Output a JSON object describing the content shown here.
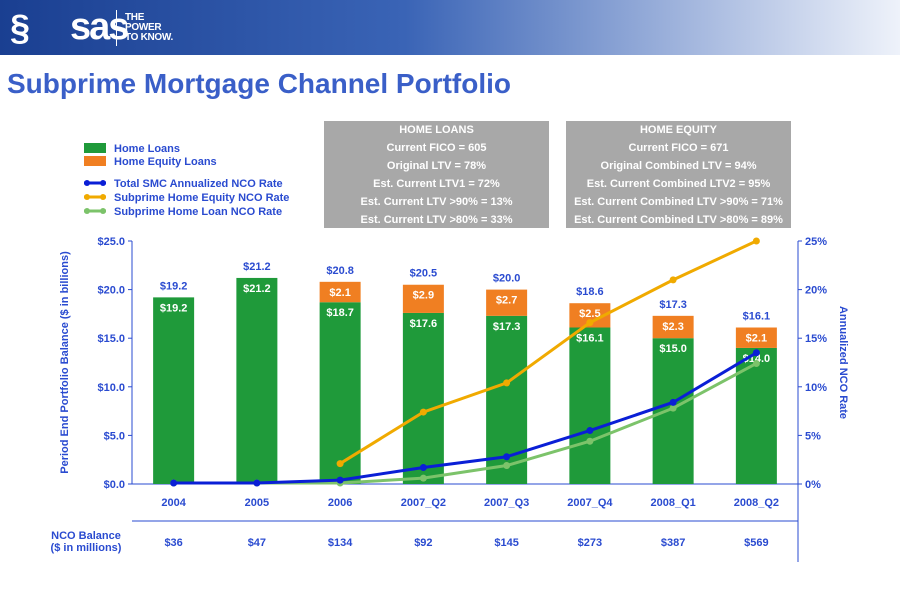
{
  "header": {
    "brand": "sas",
    "tagline": [
      "THE",
      "POWER",
      "TO KNOW."
    ],
    "title": "Subprime Mortgage Channel Portfolio"
  },
  "home_loans_box": {
    "heading": "HOME LOANS",
    "lines": [
      "Current FICO = 605",
      "Original LTV = 78%",
      "Est. Current LTV1 = 72%",
      "Est. Current LTV >90% = 13%",
      "Est. Current LTV >80% = 33%"
    ]
  },
  "home_equity_box": {
    "heading": "HOME EQUITY",
    "lines": [
      "Current FICO = 671",
      "Original Combined LTV = 94%",
      "Est. Current Combined LTV2 = 95%",
      "Est. Current Combined LTV >90% = 71%",
      "Est. Current Combined LTV >80% = 89%"
    ]
  },
  "colors": {
    "home_loans": "#1f9a3a",
    "home_equity_loans": "#f07f22",
    "total_nco": "#0a1fd6",
    "subprime_he_nco": "#f0aa00",
    "subprime_hl_nco": "#7cc36a",
    "axis_text": "#2a4bd0"
  },
  "chart_data": {
    "type": "bar",
    "categories": [
      "2004",
      "2005",
      "2006",
      "2007_Q2",
      "2007_Q3",
      "2007_Q4",
      "2008_Q1",
      "2008_Q2"
    ],
    "ylabel": "Period End Portfolio Balance ($ in billions)",
    "y2label": "Annualized NCO Rate",
    "ylim": [
      0,
      25
    ],
    "y_ticks": [
      "$0.0",
      "$5.0",
      "$10.0",
      "$15.0",
      "$20.0",
      "$25.0"
    ],
    "y2lim": [
      0,
      25
    ],
    "y2_ticks": [
      "0%",
      "5%",
      "10%",
      "15%",
      "20%",
      "25%"
    ],
    "stacked": true,
    "series": [
      {
        "name": "Home Loans",
        "kind": "bar",
        "values": [
          19.2,
          21.2,
          18.7,
          17.6,
          17.3,
          16.1,
          15.0,
          14.0
        ],
        "labels": [
          "$19.2",
          "$21.2",
          "$18.7",
          "$17.6",
          "$17.3",
          "$16.1",
          "$15.0",
          "$14.0"
        ]
      },
      {
        "name": "Home Equity Loans",
        "kind": "bar",
        "values": [
          0,
          0,
          2.1,
          2.9,
          2.7,
          2.5,
          2.3,
          2.1
        ],
        "labels": [
          "",
          "",
          "$2.1",
          "$2.9",
          "$2.7",
          "$2.5",
          "$2.3",
          "$2.1"
        ]
      },
      {
        "name": "Total SMC Annualized NCO Rate",
        "kind": "line",
        "axis": "right",
        "values": [
          0.1,
          0.1,
          0.4,
          1.7,
          2.8,
          5.5,
          8.4,
          13.5
        ]
      },
      {
        "name": "Subprime Home Equity NCO Rate",
        "kind": "line",
        "axis": "right",
        "values": [
          null,
          null,
          2.1,
          7.4,
          10.4,
          16.6,
          21.0,
          25.0
        ]
      },
      {
        "name": "Subprime Home Loan NCO Rate",
        "kind": "line",
        "axis": "right",
        "values": [
          0.1,
          0.1,
          0.1,
          0.6,
          1.9,
          4.4,
          7.8,
          12.4
        ]
      }
    ],
    "totals": [
      "$19.2",
      "$21.2",
      "$20.8",
      "$20.5",
      "$20.0",
      "$18.6",
      "$17.3",
      "$16.1"
    ],
    "nco_balance": {
      "label": [
        "NCO Balance",
        "($ in millions)"
      ],
      "values": [
        "$36",
        "$47",
        "$134",
        "$92",
        "$145",
        "$273",
        "$387",
        "$569"
      ]
    },
    "legend_position": "top-left"
  }
}
